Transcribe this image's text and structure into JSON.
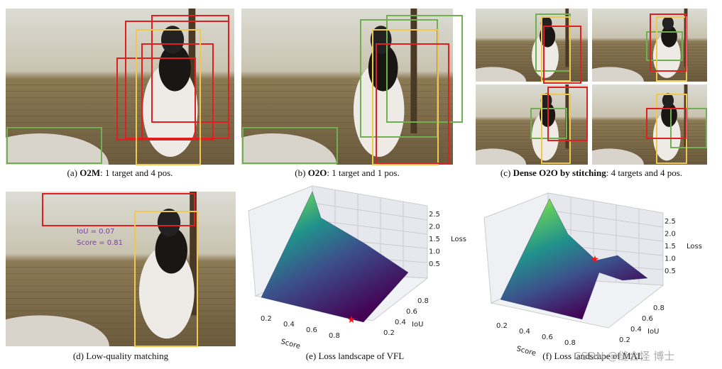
{
  "panels": [
    {
      "label": "(a)",
      "bold": "O2M",
      "rest": ": 1 target and 4 pos."
    },
    {
      "label": "(b)",
      "bold": "O2O",
      "rest": ": 1 target and 1 pos."
    },
    {
      "label": "(c)",
      "bold": "Dense O2O by stitching",
      "rest": ": 4 targets and 4 pos."
    },
    {
      "label": "(d)",
      "rest": "Low-quality matching"
    },
    {
      "label": "(e)",
      "rest": "Loss landscape of VFL"
    },
    {
      "label": "(f)",
      "rest": "Loss landscape of MAL"
    }
  ],
  "annotation": {
    "iou": "IoU    = 0.07",
    "score": "Score = 0.81"
  },
  "plots": [
    {
      "z_ticks": [
        "0.5",
        "1.0",
        "1.5",
        "2.0",
        "2.5"
      ],
      "z_label": "Loss",
      "x_ticks": [
        "0.2",
        "0.4",
        "0.6",
        "0.8"
      ],
      "x_label": "Score",
      "y_ticks": [
        "0.2",
        "0.4",
        "0.6",
        "0.8"
      ],
      "y_label": "IoU"
    },
    {
      "z_ticks": [
        "0.5",
        "1.0",
        "1.5",
        "2.0",
        "2.5"
      ],
      "z_label": "Loss",
      "x_ticks": [
        "0.2",
        "0.4",
        "0.6",
        "0.8"
      ],
      "x_label": "Score",
      "y_ticks": [
        "0.2",
        "0.4",
        "0.6",
        "0.8"
      ],
      "y_label": "IoU"
    }
  ],
  "watermark": "CSDN @缝合怪 博士"
}
